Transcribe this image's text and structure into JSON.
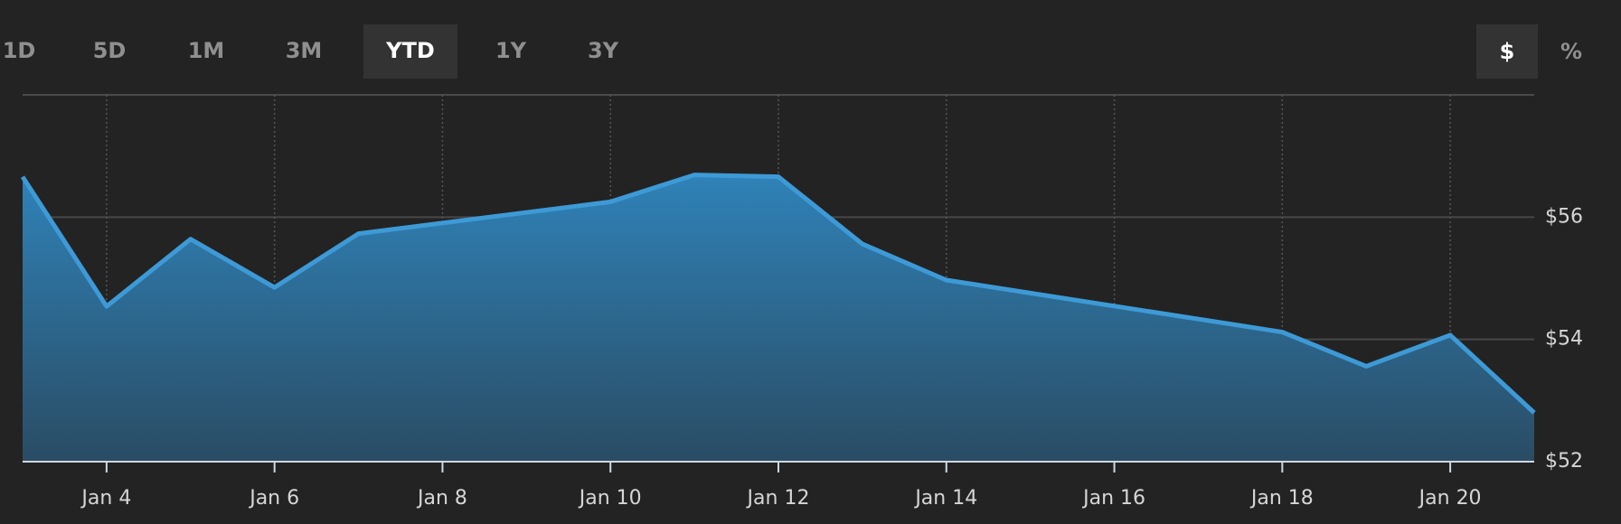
{
  "toolbar": {
    "range_buttons": [
      "1D",
      "5D",
      "1M",
      "3M",
      "YTD",
      "1Y",
      "3Y"
    ],
    "active_range": "YTD",
    "unit_buttons": [
      "$",
      "%"
    ],
    "active_unit": "$"
  },
  "chart_data": {
    "type": "area",
    "x": [
      3,
      4,
      5,
      6,
      7,
      10,
      11,
      12,
      13,
      14,
      18,
      19,
      20,
      21
    ],
    "values": [
      56.66,
      54.54,
      55.64,
      54.85,
      55.73,
      56.25,
      56.69,
      56.66,
      55.56,
      54.97,
      54.12,
      53.56,
      54.07,
      52.8
    ],
    "color": "#3d9ad6",
    "xlim": [
      3,
      21
    ],
    "xticks": [
      {
        "value": 4,
        "label": "Jan 4"
      },
      {
        "value": 6,
        "label": "Jan 6"
      },
      {
        "value": 8,
        "label": "Jan 8"
      },
      {
        "value": 10,
        "label": "Jan 10"
      },
      {
        "value": 12,
        "label": "Jan 12"
      },
      {
        "value": 14,
        "label": "Jan 14"
      },
      {
        "value": 16,
        "label": "Jan 16"
      },
      {
        "value": 18,
        "label": "Jan 18"
      },
      {
        "value": 20,
        "label": "Jan 20"
      }
    ],
    "ylim": [
      52,
      58
    ],
    "yticks": [
      {
        "value": 52,
        "label": "$52"
      },
      {
        "value": 54,
        "label": "$54"
      },
      {
        "value": 56,
        "label": "$56"
      }
    ],
    "grid": true
  }
}
